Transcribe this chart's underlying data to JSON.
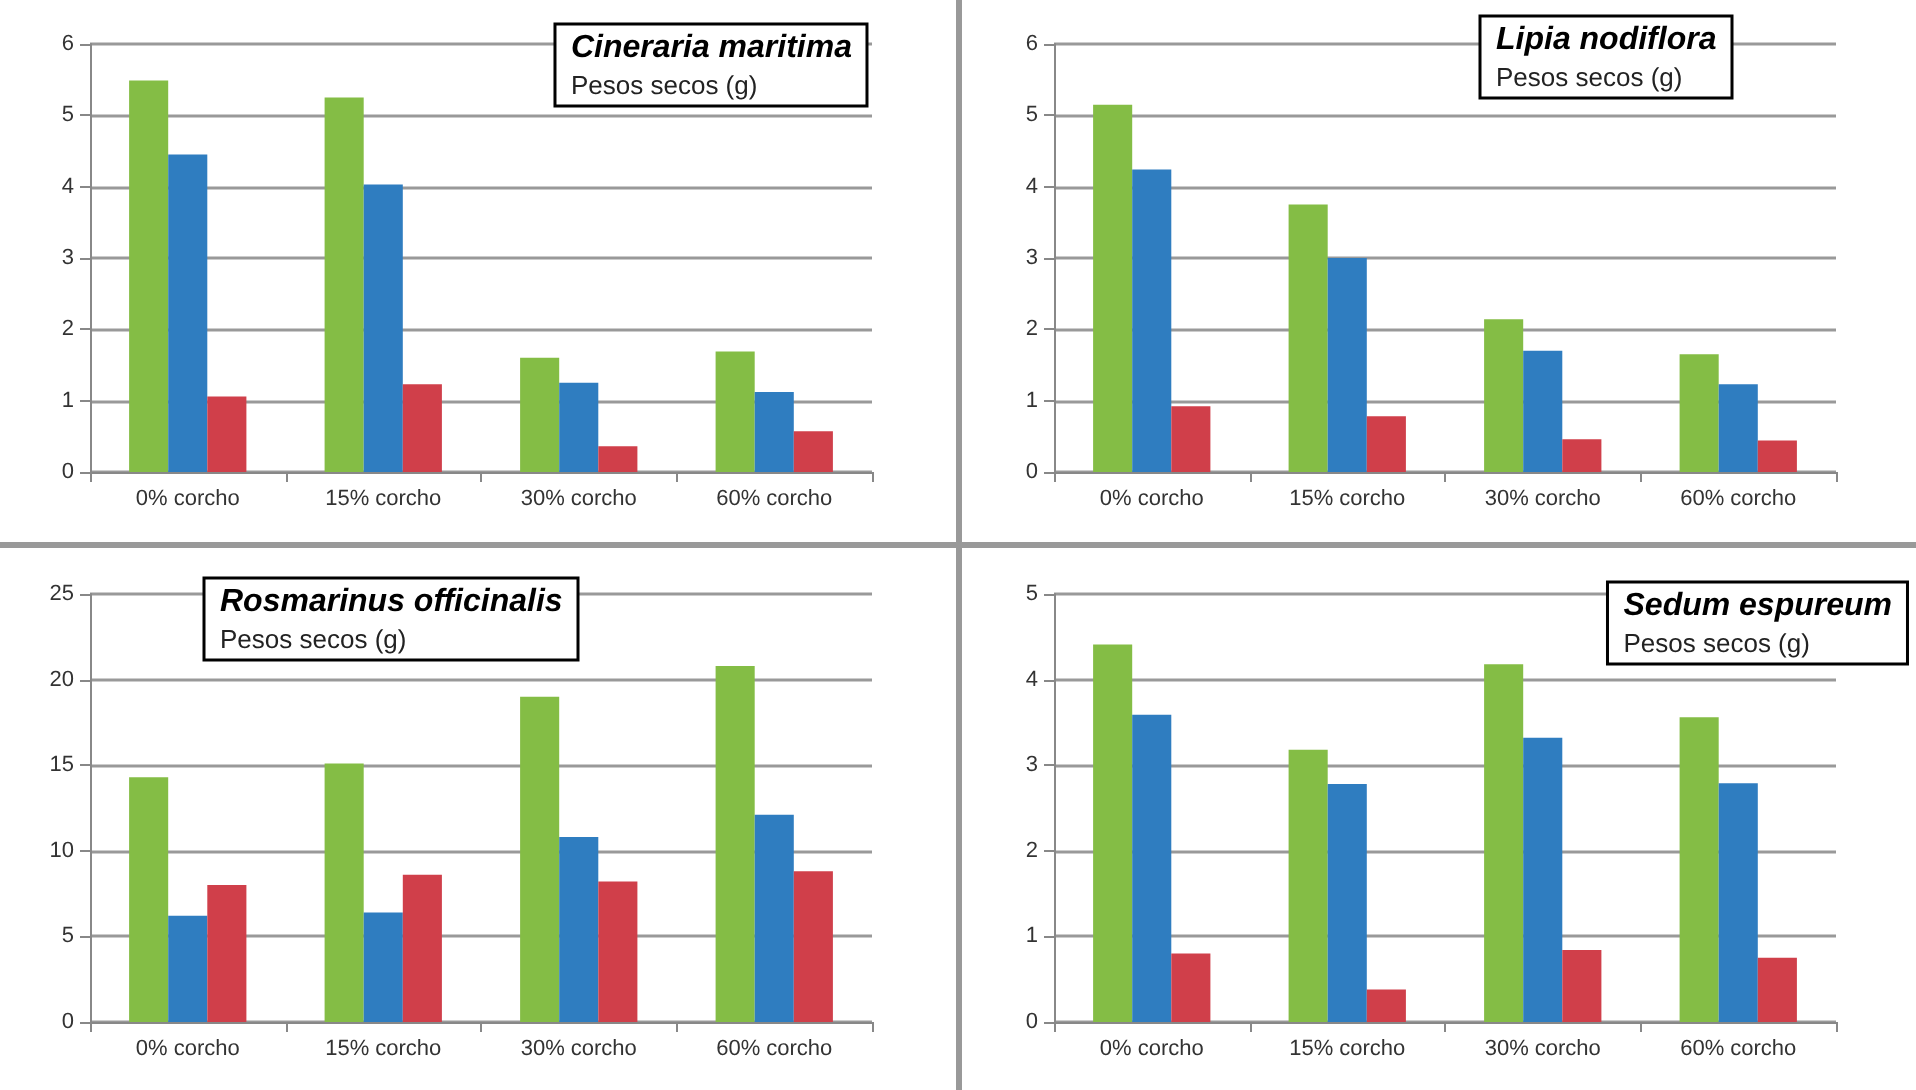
{
  "chart_data": [
    {
      "type": "bar",
      "title": "Cineraria maritima",
      "subtitle": "Pesos secos (g)",
      "categories": [
        "0% corcho",
        "15% corcho",
        "30% corcho",
        "60% corcho"
      ],
      "series": [
        {
          "color": "#84bd45",
          "values": [
            5.49,
            5.25,
            1.6,
            1.69
          ]
        },
        {
          "color": "#2f7dc0",
          "values": [
            4.45,
            4.03,
            1.25,
            1.12
          ]
        },
        {
          "color": "#d03f4a",
          "values": [
            1.06,
            1.23,
            0.36,
            0.57
          ]
        }
      ],
      "ylim": [
        0,
        6
      ],
      "yticks": [
        0,
        1,
        2,
        3,
        4,
        5,
        6
      ],
      "grid": "y"
    },
    {
      "type": "bar",
      "title": "Lipia nodiflora",
      "subtitle": "Pesos secos (g)",
      "categories": [
        "0% corcho",
        "15% corcho",
        "30% corcho",
        "60% corcho"
      ],
      "series": [
        {
          "color": "#84bd45",
          "values": [
            5.15,
            3.75,
            2.14,
            1.65
          ]
        },
        {
          "color": "#2f7dc0",
          "values": [
            4.24,
            3.0,
            1.7,
            1.23
          ]
        },
        {
          "color": "#d03f4a",
          "values": [
            0.92,
            0.78,
            0.46,
            0.44
          ]
        }
      ],
      "ylim": [
        0,
        6
      ],
      "yticks": [
        0,
        1,
        2,
        3,
        4,
        5,
        6
      ],
      "grid": "y"
    },
    {
      "type": "bar",
      "title": "Rosmarinus officinalis",
      "subtitle": "Pesos secos (g)",
      "categories": [
        "0% corcho",
        "15% corcho",
        "30% corcho",
        "60% corcho"
      ],
      "series": [
        {
          "color": "#84bd45",
          "values": [
            14.3,
            15.1,
            19.0,
            20.8
          ]
        },
        {
          "color": "#2f7dc0",
          "values": [
            6.2,
            6.4,
            10.8,
            12.1
          ]
        },
        {
          "color": "#d03f4a",
          "values": [
            8.0,
            8.6,
            8.2,
            8.8
          ]
        }
      ],
      "ylim": [
        0,
        25
      ],
      "yticks": [
        0,
        5,
        10,
        15,
        20,
        25
      ],
      "grid": "y"
    },
    {
      "type": "bar",
      "title": "Sedum espureum",
      "subtitle": "Pesos secos (g)",
      "categories": [
        "0% corcho",
        "15% corcho",
        "30% corcho",
        "60% corcho"
      ],
      "series": [
        {
          "color": "#84bd45",
          "values": [
            4.41,
            3.18,
            4.18,
            3.56
          ]
        },
        {
          "color": "#2f7dc0",
          "values": [
            3.59,
            2.78,
            3.32,
            2.79
          ]
        },
        {
          "color": "#d03f4a",
          "values": [
            0.8,
            0.38,
            0.84,
            0.75
          ]
        }
      ],
      "ylim": [
        0,
        5
      ],
      "yticks": [
        0,
        1,
        2,
        3,
        4,
        5
      ],
      "grid": "y"
    }
  ]
}
